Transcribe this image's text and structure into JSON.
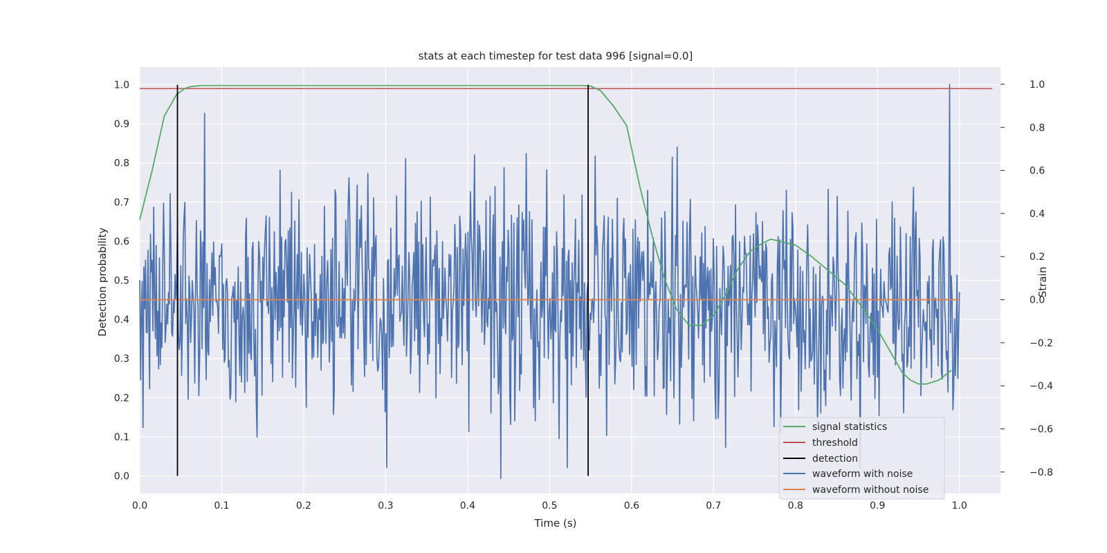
{
  "chart_data": {
    "type": "line",
    "title": "stats at each timestep for test data 996 [signal=0.0]",
    "xlabel": "Time (s)",
    "ylabel_left": "Detection probability",
    "ylabel_right": "Strain",
    "xlim": [
      0.0,
      1.05
    ],
    "ylim_left": [
      -0.045,
      1.045
    ],
    "ylim_right": [
      -0.9,
      1.08
    ],
    "xticks": [
      "0.0",
      "0.1",
      "0.2",
      "0.3",
      "0.4",
      "0.5",
      "0.6",
      "0.7",
      "0.8",
      "0.9",
      "1.0"
    ],
    "yticks_left": [
      "0.0",
      "0.1",
      "0.2",
      "0.3",
      "0.4",
      "0.5",
      "0.6",
      "0.7",
      "0.8",
      "0.9",
      "1.0"
    ],
    "yticks_right": [
      "−0.8",
      "−0.6",
      "−0.4",
      "−0.2",
      "0.0",
      "0.2",
      "0.4",
      "0.6",
      "0.8",
      "1.0"
    ],
    "grid": true,
    "legend_position": "lower-right",
    "legend": [
      "signal statistics",
      "threshold",
      "detection",
      "waveform with noise",
      "waveform without noise"
    ],
    "colors": {
      "signal_statistics": "#55a868",
      "threshold": "#c44e52",
      "detection": "#000000",
      "waveform_with_noise": "#4c72b0",
      "waveform_without_noise": "#dd8452",
      "plot_background": "#eaeaf2",
      "grid": "#ffffff"
    },
    "signal_statistics": {
      "axis": "left",
      "x": [
        0.0,
        0.015,
        0.03,
        0.045,
        0.055,
        0.062,
        0.075,
        0.1,
        0.2,
        0.3,
        0.4,
        0.5,
        0.54,
        0.55,
        0.562,
        0.578,
        0.594,
        0.61,
        0.625,
        0.64,
        0.655,
        0.67,
        0.685,
        0.7,
        0.715,
        0.73,
        0.745,
        0.76,
        0.77,
        0.78,
        0.8,
        0.82,
        0.84,
        0.86,
        0.88,
        0.9,
        0.915,
        0.93,
        0.94,
        0.95,
        0.96,
        0.975,
        0.99
      ],
      "y": [
        0.655,
        0.78,
        0.92,
        0.975,
        0.99,
        0.995,
        0.998,
        0.998,
        0.998,
        0.998,
        0.998,
        0.998,
        0.998,
        0.996,
        0.985,
        0.945,
        0.895,
        0.74,
        0.615,
        0.505,
        0.425,
        0.385,
        0.385,
        0.41,
        0.465,
        0.53,
        0.575,
        0.595,
        0.605,
        0.6,
        0.59,
        0.56,
        0.525,
        0.49,
        0.435,
        0.375,
        0.32,
        0.265,
        0.245,
        0.235,
        0.235,
        0.245,
        0.27
      ]
    },
    "threshold": {
      "axis": "left",
      "value": 0.99,
      "x_range": [
        0.0,
        1.04
      ]
    },
    "detection": {
      "axis": "left",
      "x": [
        0.046,
        0.547
      ],
      "y_range": [
        0.0,
        1.0
      ]
    },
    "waveform_with_noise": {
      "axis": "right",
      "x_range": [
        0.0,
        1.0
      ],
      "n_points": 1000,
      "approx_range": [
        -0.83,
        1.0
      ],
      "noise_std": 0.26,
      "peak_x": 0.988,
      "peak_value": 1.0,
      "min_x": 0.44,
      "min_value": -0.83
    },
    "waveform_without_noise": {
      "axis": "right",
      "value": 0.0,
      "x_range": [
        0.0,
        1.0
      ]
    }
  }
}
